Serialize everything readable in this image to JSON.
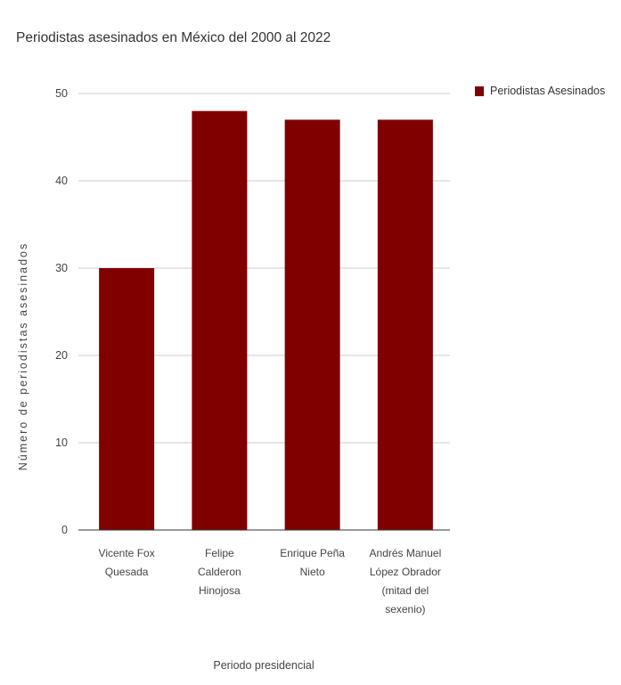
{
  "chart_data": {
    "type": "bar",
    "title": "Periodistas asesinados en México del 2000 al 2022",
    "xlabel": "Periodo presidencial",
    "ylabel": "Número de periodistas asesinados",
    "ylim": [
      0,
      50
    ],
    "yticks": [
      0,
      10,
      20,
      30,
      40,
      50
    ],
    "grid": true,
    "legend_position": "top-right",
    "categories": [
      [
        "Vicente Fox",
        "Quesada"
      ],
      [
        "Felipe",
        "Calderon",
        "Hinojosa"
      ],
      [
        "Enrique Peña",
        "Nieto"
      ],
      [
        "Andrés Manuel",
        "López Obrador",
        "(mitad del",
        "sexenio)"
      ]
    ],
    "series": [
      {
        "name": "Periodistas Asesinados",
        "color": "#800000",
        "values": [
          30,
          48,
          47,
          47
        ]
      }
    ]
  }
}
